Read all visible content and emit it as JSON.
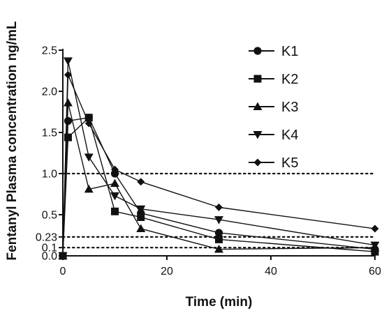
{
  "chart_data": {
    "type": "line",
    "xlabel": "Time (min)",
    "ylabel": "Fentanyl Plasma concentration ng/mL",
    "xlim": [
      0,
      60
    ],
    "ylim": [
      0,
      2.5
    ],
    "x_ticks": [
      "0",
      "20",
      "40",
      "60"
    ],
    "y_ticks": [
      "0.0",
      "0.1",
      "0.23",
      "0.5",
      "1.0",
      "1.5",
      "2.0",
      "2.5"
    ],
    "reference_lines": [
      1.0,
      0.23,
      0.1
    ],
    "legend_position": "top-right",
    "x": [
      0,
      1,
      5,
      10,
      15,
      30,
      60
    ],
    "series": [
      {
        "name": "K1",
        "marker": "circle",
        "values": [
          0.0,
          1.64,
          1.68,
          1.0,
          0.52,
          0.28,
          0.08
        ]
      },
      {
        "name": "K2",
        "marker": "square",
        "values": [
          0.0,
          1.44,
          1.68,
          0.54,
          0.47,
          0.2,
          0.05
        ]
      },
      {
        "name": "K3",
        "marker": "triangle-up",
        "values": [
          0.0,
          1.86,
          0.81,
          0.88,
          0.33,
          0.08,
          0.1
        ]
      },
      {
        "name": "K4",
        "marker": "triangle-down",
        "values": [
          0.0,
          2.37,
          1.2,
          0.73,
          0.57,
          0.44,
          0.13
        ]
      },
      {
        "name": "K5",
        "marker": "diamond",
        "values": [
          0.0,
          2.2,
          1.61,
          1.05,
          0.9,
          0.59,
          0.33
        ]
      }
    ]
  }
}
